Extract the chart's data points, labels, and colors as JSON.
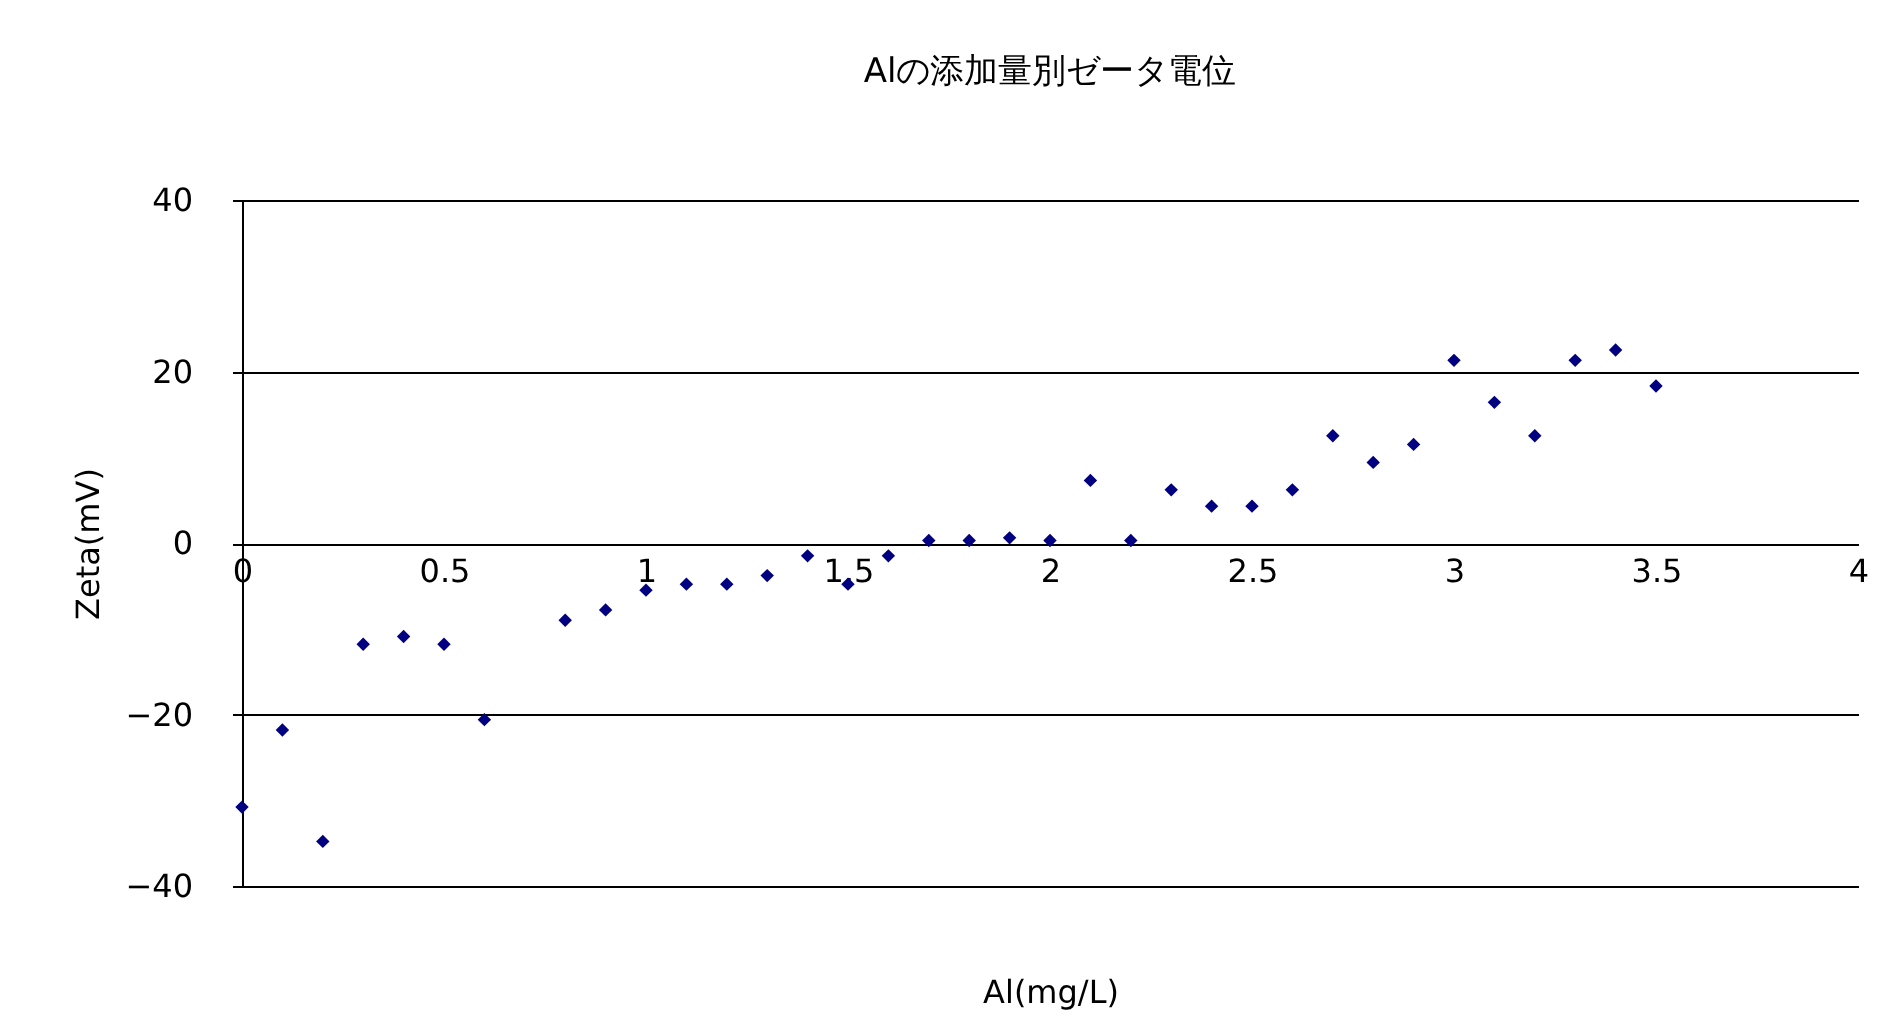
{
  "chart_data": {
    "type": "scatter",
    "title": "Alの添加量別ゼータ電位",
    "xlabel": "Al(mg/L)",
    "ylabel": "Zeta(mV)",
    "x": [
      0,
      0.1,
      0.2,
      0.3,
      0.4,
      0.5,
      0.6,
      0.8,
      0.9,
      1.0,
      1.1,
      1.2,
      1.3,
      1.4,
      1.5,
      1.6,
      1.7,
      1.8,
      1.9,
      2.0,
      2.1,
      2.2,
      2.3,
      2.4,
      2.5,
      2.6,
      2.7,
      2.8,
      2.9,
      3.0,
      3.1,
      3.2,
      3.3,
      3.4,
      3.5
    ],
    "series": [
      {
        "color": "#000080",
        "values": [
          -30.8,
          -21.8,
          -34.8,
          -11.8,
          -10.9,
          -11.8,
          -20.6,
          -9.0,
          -7.8,
          -5.5,
          -4.8,
          -4.8,
          -3.8,
          -1.5,
          -4.8,
          -1.5,
          0.3,
          0.3,
          0.6,
          0.3,
          7.3,
          0.3,
          6.2,
          4.3,
          4.3,
          6.2,
          12.5,
          9.4,
          11.5,
          21.3,
          16.4,
          12.5,
          21.3,
          22.5,
          18.3
        ]
      }
    ],
    "xlim": [
      0,
      4
    ],
    "xticks": [
      0,
      0.5,
      1,
      1.5,
      2,
      2.5,
      3,
      3.5,
      4
    ],
    "ylim": [
      -40,
      40
    ],
    "yticks": [
      -40,
      -20,
      0,
      20,
      40
    ],
    "grid": "y",
    "marker": "diamond"
  }
}
